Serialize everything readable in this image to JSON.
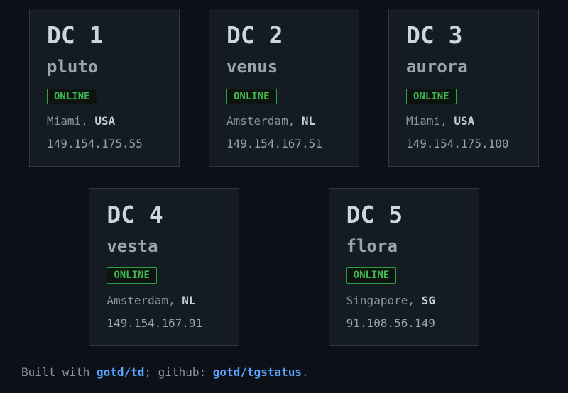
{
  "page": {
    "background_color": "#0d1117",
    "card_background_color": "#151b23",
    "card_border_color": "#30363d",
    "status_color": "#3fb950",
    "link_color": "#58a6ff"
  },
  "cards": [
    {
      "title": "DC 1",
      "name": "pluto",
      "status": "ONLINE",
      "city": "Miami,",
      "country": "USA",
      "ip": "149.154.175.55"
    },
    {
      "title": "DC 2",
      "name": "venus",
      "status": "ONLINE",
      "city": "Amsterdam,",
      "country": "NL",
      "ip": "149.154.167.51"
    },
    {
      "title": "DC 3",
      "name": "aurora",
      "status": "ONLINE",
      "city": "Miami,",
      "country": "USA",
      "ip": "149.154.175.100"
    },
    {
      "title": "DC 4",
      "name": "vesta",
      "status": "ONLINE",
      "city": "Amsterdam,",
      "country": "NL",
      "ip": "149.154.167.91"
    },
    {
      "title": "DC 5",
      "name": "flora",
      "status": "ONLINE",
      "city": "Singapore,",
      "country": "SG",
      "ip": "91.108.56.149"
    }
  ],
  "footer": {
    "prefix": "Built with ",
    "link1": "gotd/td",
    "separator": "; github: ",
    "link2": "gotd/tgstatus",
    "suffix": "."
  }
}
